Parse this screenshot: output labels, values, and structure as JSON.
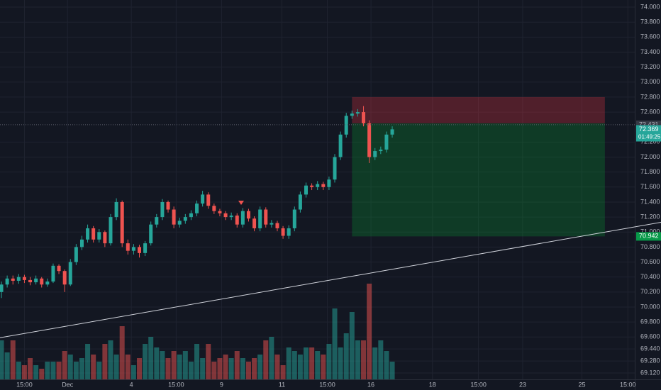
{
  "chart_data": {
    "type": "candlestick",
    "up_color": "#26a69a",
    "down_color": "#ef5350",
    "ohlc": [
      [
        70.2,
        70.34,
        70.12,
        70.3
      ],
      [
        70.3,
        70.42,
        70.26,
        70.38
      ],
      [
        70.38,
        70.42,
        70.3,
        70.35
      ],
      [
        70.35,
        70.44,
        70.31,
        70.4
      ],
      [
        70.4,
        70.43,
        70.32,
        70.36
      ],
      [
        70.36,
        70.4,
        70.29,
        70.33
      ],
      [
        70.33,
        70.42,
        70.3,
        70.38
      ],
      [
        70.38,
        70.4,
        70.26,
        70.3
      ],
      [
        70.3,
        70.38,
        70.27,
        70.34
      ],
      [
        70.34,
        70.58,
        70.32,
        70.55
      ],
      [
        70.55,
        70.57,
        70.44,
        70.48
      ],
      [
        70.48,
        70.5,
        70.2,
        70.3
      ],
      [
        70.3,
        70.64,
        70.28,
        70.6
      ],
      [
        70.6,
        70.84,
        70.56,
        70.8
      ],
      [
        70.8,
        70.95,
        70.76,
        70.9
      ],
      [
        70.9,
        71.1,
        70.86,
        71.05
      ],
      [
        71.05,
        71.08,
        70.86,
        70.9
      ],
      [
        70.9,
        71.04,
        70.86,
        71.0
      ],
      [
        71.0,
        71.02,
        70.8,
        70.85
      ],
      [
        70.85,
        71.24,
        70.82,
        71.2
      ],
      [
        71.2,
        71.45,
        71.16,
        71.4
      ],
      [
        71.4,
        71.42,
        70.8,
        70.85
      ],
      [
        70.85,
        70.9,
        70.7,
        70.75
      ],
      [
        70.75,
        70.84,
        70.7,
        70.8
      ],
      [
        70.8,
        70.83,
        70.66,
        70.72
      ],
      [
        70.72,
        70.88,
        70.68,
        70.85
      ],
      [
        70.85,
        71.14,
        70.82,
        71.1
      ],
      [
        71.1,
        71.24,
        71.06,
        71.2
      ],
      [
        71.2,
        71.44,
        71.16,
        71.4
      ],
      [
        71.4,
        71.42,
        71.26,
        71.3
      ],
      [
        71.3,
        71.34,
        71.05,
        71.1
      ],
      [
        71.1,
        71.19,
        71.06,
        71.15
      ],
      [
        71.15,
        71.24,
        71.11,
        71.2
      ],
      [
        71.2,
        71.29,
        71.16,
        71.25
      ],
      [
        71.25,
        71.42,
        71.21,
        71.38
      ],
      [
        71.38,
        71.55,
        71.34,
        71.5
      ],
      [
        71.5,
        71.53,
        71.31,
        71.35
      ],
      [
        71.35,
        71.38,
        71.24,
        71.28
      ],
      [
        71.28,
        71.31,
        71.21,
        71.25
      ],
      [
        71.25,
        71.28,
        71.16,
        71.2
      ],
      [
        71.2,
        71.26,
        71.16,
        71.22
      ],
      [
        71.22,
        71.25,
        71.06,
        71.1
      ],
      [
        71.1,
        71.32,
        71.06,
        71.28
      ],
      [
        71.28,
        71.31,
        71.14,
        71.18
      ],
      [
        71.18,
        71.21,
        71.01,
        71.05
      ],
      [
        71.05,
        71.34,
        71.01,
        71.3
      ],
      [
        71.3,
        71.33,
        71.06,
        71.1
      ],
      [
        71.1,
        71.16,
        71.06,
        71.12
      ],
      [
        71.12,
        71.15,
        71.01,
        71.05
      ],
      [
        71.05,
        71.08,
        70.91,
        70.95
      ],
      [
        70.95,
        71.09,
        70.91,
        71.05
      ],
      [
        71.05,
        71.34,
        71.01,
        71.3
      ],
      [
        71.3,
        71.54,
        71.26,
        71.5
      ],
      [
        71.5,
        71.66,
        71.46,
        71.62
      ],
      [
        71.62,
        71.65,
        71.56,
        71.6
      ],
      [
        71.6,
        71.68,
        71.56,
        71.64
      ],
      [
        71.64,
        71.67,
        71.56,
        71.6
      ],
      [
        71.6,
        71.74,
        71.56,
        71.7
      ],
      [
        71.7,
        72.04,
        71.66,
        72.0
      ],
      [
        72.0,
        72.34,
        71.96,
        72.3
      ],
      [
        72.3,
        72.59,
        72.26,
        72.55
      ],
      [
        72.55,
        72.62,
        72.51,
        72.58
      ],
      [
        72.58,
        72.64,
        72.54,
        72.6
      ],
      [
        72.6,
        72.68,
        72.41,
        72.45
      ],
      [
        72.45,
        72.49,
        71.92,
        72.0
      ],
      [
        72.0,
        72.12,
        71.96,
        72.08
      ],
      [
        72.08,
        72.14,
        72.04,
        72.1
      ],
      [
        72.1,
        72.34,
        72.06,
        72.3
      ],
      [
        72.3,
        72.41,
        72.26,
        72.37
      ]
    ],
    "volume": [
      55,
      38,
      55,
      25,
      20,
      30,
      20,
      15,
      25,
      25,
      25,
      40,
      35,
      25,
      30,
      50,
      35,
      25,
      50,
      55,
      35,
      75,
      35,
      20,
      30,
      50,
      60,
      45,
      40,
      30,
      40,
      35,
      40,
      25,
      50,
      30,
      50,
      25,
      30,
      35,
      30,
      40,
      30,
      25,
      30,
      35,
      55,
      60,
      35,
      20,
      45,
      40,
      35,
      45,
      45,
      40,
      35,
      50,
      100,
      45,
      65,
      95,
      55,
      55,
      135,
      45,
      55,
      40,
      25
    ],
    "xlim": [
      -0.25,
      110.2
    ],
    "xticks": [
      {
        "value": 4,
        "label": "15:00"
      },
      {
        "value": 11.5,
        "label": "Dec"
      },
      {
        "value": 22.6,
        "label": "4"
      },
      {
        "value": 30.4,
        "label": "15:00"
      },
      {
        "value": 38.3,
        "label": "9"
      },
      {
        "value": 48.8,
        "label": "11"
      },
      {
        "value": 56.7,
        "label": "15:00"
      },
      {
        "value": 64.3,
        "label": "16"
      },
      {
        "value": 75,
        "label": "18"
      },
      {
        "value": 83,
        "label": "15:00"
      },
      {
        "value": 90.7,
        "label": "23"
      },
      {
        "value": 101,
        "label": "25"
      },
      {
        "value": 109,
        "label": "15:00"
      }
    ],
    "ylim": [
      69.035,
      74.095
    ],
    "yticks": [
      {
        "value": 69.12,
        "label": "69.120"
      },
      {
        "value": 69.28,
        "label": "69.280"
      },
      {
        "value": 69.44,
        "label": "69.440"
      },
      {
        "value": 69.6,
        "label": "69.600"
      },
      {
        "value": 69.8,
        "label": "69.800"
      },
      {
        "value": 70.0,
        "label": "70.000"
      },
      {
        "value": 70.2,
        "label": "70.200"
      },
      {
        "value": 70.4,
        "label": "70.400"
      },
      {
        "value": 70.6,
        "label": "70.600"
      },
      {
        "value": 70.8,
        "label": "70.800"
      },
      {
        "value": 71.0,
        "label": "71.000"
      },
      {
        "value": 71.2,
        "label": "71.200"
      },
      {
        "value": 71.4,
        "label": "71.400"
      },
      {
        "value": 71.6,
        "label": "71.600"
      },
      {
        "value": 71.8,
        "label": "71.800"
      },
      {
        "value": 72.0,
        "label": "72.000"
      },
      {
        "value": 72.2,
        "label": "72.200"
      },
      {
        "value": 72.6,
        "label": "72.600"
      },
      {
        "value": 72.8,
        "label": "72.800"
      },
      {
        "value": 73.0,
        "label": "73.000"
      },
      {
        "value": 73.2,
        "label": "73.200"
      },
      {
        "value": 73.4,
        "label": "73.400"
      },
      {
        "value": 73.6,
        "label": "73.600"
      },
      {
        "value": 73.8,
        "label": "73.800"
      },
      {
        "value": 74.0,
        "label": "74.000"
      }
    ],
    "grid": true,
    "position": {
      "start": 61,
      "end": 105,
      "stop": 72.8,
      "entry": 72.45,
      "target": {
        "value": 70.942,
        "label": "70.942"
      }
    },
    "trendline": {
      "x": [
        -0.25,
        114.8
      ],
      "y": [
        69.59,
        71.13
      ]
    },
    "price_line": {
      "value": 72.431,
      "label": "72.431"
    },
    "last_price": {
      "value": 72.369,
      "label": "72.369",
      "countdown": "01:49:25"
    }
  }
}
